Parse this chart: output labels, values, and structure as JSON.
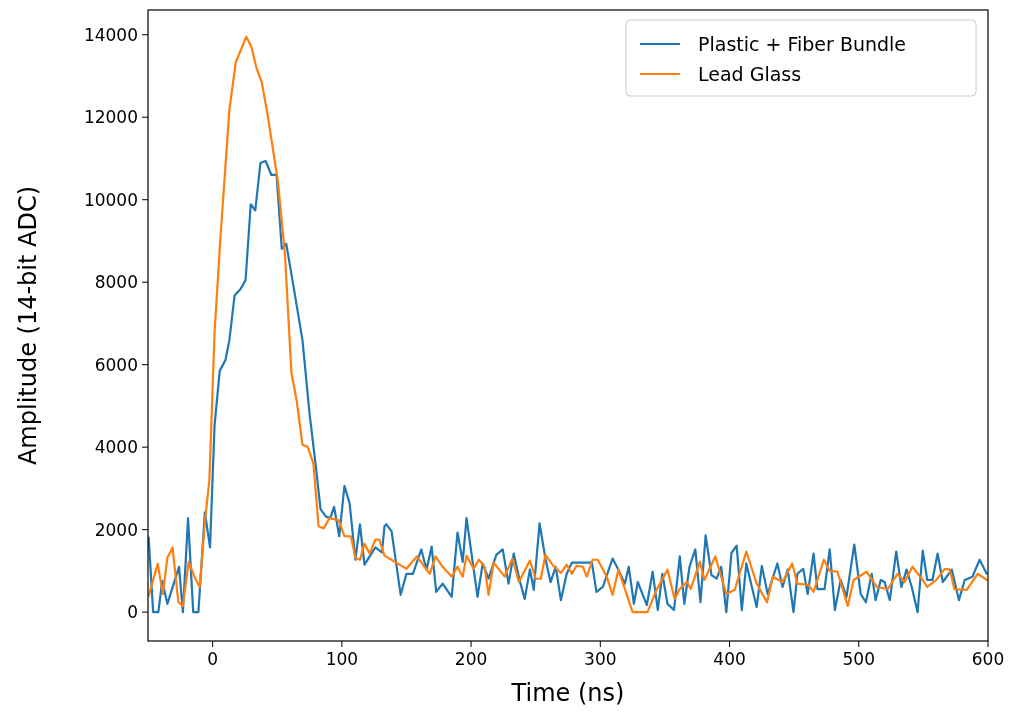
{
  "chart_data": {
    "type": "line",
    "xlabel": "Time (ns)",
    "ylabel": "Amplitude (14-bit ADC)",
    "xlim": [
      -50,
      600
    ],
    "ylim": [
      -700,
      14600
    ],
    "xticks": [
      0,
      100,
      200,
      300,
      400,
      500,
      600
    ],
    "yticks": [
      0,
      2000,
      4000,
      6000,
      8000,
      10000,
      12000,
      14000
    ],
    "grid": false,
    "legend": "top right",
    "marker": "none",
    "line_style": "solid",
    "series": [
      {
        "name": "Plastic + Fiber Bundle",
        "color": "#1f77b4",
        "x": [
          -49.5,
          -46,
          -42,
          -39,
          -35,
          -31,
          -26,
          -23,
          -19,
          -15,
          -11,
          -6,
          -2,
          1.5,
          5.5,
          10,
          13,
          17,
          21.5,
          25.5,
          29.5,
          33,
          37,
          41,
          45.5,
          49.5,
          53.5,
          57,
          63.5,
          69.5,
          75,
          80,
          83.5,
          87.5,
          91,
          94,
          98,
          102,
          106,
          110.5,
          114,
          117.5,
          126,
          131,
          133,
          134.5,
          138.5,
          145.5,
          150,
          155,
          161.5,
          165.5,
          169.5,
          173,
          178,
          185,
          189.5,
          193.5,
          196.5,
          205,
          209,
          213.5,
          219.5,
          224.5,
          229,
          233,
          237.5,
          241.5,
          245.5,
          248.5,
          253,
          257.5,
          261.5,
          265.5,
          269.5,
          274,
          278,
          288,
          293.5,
          297,
          302,
          309.5,
          314,
          319,
          322,
          326,
          329,
          336,
          340.5,
          344.5,
          348,
          352,
          357,
          361.5,
          365,
          369,
          373.5,
          377.5,
          381.5,
          386,
          390,
          393.5,
          397.5,
          401.5,
          405.5,
          409.5,
          413,
          421,
          425,
          429.5,
          437,
          441,
          445,
          449.5,
          452.5,
          457,
          460.5,
          465,
          468,
          473.5,
          477.5,
          481.5,
          486,
          490.5,
          496.5,
          501.5,
          505.5,
          510,
          513,
          517,
          520,
          524,
          529,
          533,
          537,
          541,
          545.5,
          549.5,
          553,
          557,
          561,
          565,
          572,
          577.5,
          582,
          588,
          593.5,
          599
        ],
        "values": [
          1810,
          0,
          0,
          760,
          200,
          600,
          1100,
          0,
          2280,
          0,
          0,
          2420,
          1570,
          4530,
          5850,
          6120,
          6600,
          7680,
          7830,
          8050,
          9890,
          9740,
          10890,
          10940,
          10600,
          10600,
          8810,
          8930,
          7730,
          6600,
          4820,
          3500,
          2500,
          2320,
          2280,
          2550,
          1840,
          3060,
          2640,
          1270,
          2130,
          1150,
          1570,
          1450,
          2080,
          2130,
          1960,
          420,
          930,
          930,
          1520,
          1030,
          1590,
          490,
          690,
          370,
          1930,
          1220,
          2280,
          370,
          1180,
          810,
          1390,
          1520,
          690,
          1420,
          780,
          320,
          1030,
          540,
          2150,
          1300,
          730,
          1100,
          290,
          930,
          1200,
          1200,
          1200,
          490,
          610,
          1300,
          1030,
          690,
          1100,
          200,
          730,
          170,
          980,
          50,
          930,
          200,
          50,
          1350,
          200,
          1100,
          1520,
          240,
          1860,
          900,
          810,
          1100,
          0,
          1440,
          1610,
          50,
          1180,
          120,
          1120,
          440,
          1180,
          610,
          1030,
          0,
          930,
          1050,
          440,
          1420,
          560,
          560,
          1520,
          50,
          780,
          370,
          1640,
          440,
          240,
          930,
          290,
          780,
          730,
          290,
          1470,
          610,
          1030,
          610,
          0,
          1490,
          780,
          780,
          1420,
          730,
          1030,
          290,
          780,
          860,
          1270,
          930
        ]
      },
      {
        "name": "Lead Glass",
        "color": "#ff7f0e",
        "x": [
          -49.5,
          -42.5,
          -38.5,
          -35,
          -31,
          -26.5,
          -23,
          -18.5,
          -14,
          -10,
          -6,
          -2.5,
          1.5,
          6,
          13,
          18,
          26,
          30,
          34,
          38,
          42.5,
          50.5,
          56,
          61,
          65,
          69.5,
          73.5,
          78,
          82,
          86,
          90.5,
          97.5,
          102,
          107,
          110.5,
          114,
          117.5,
          121.5,
          126,
          129,
          133,
          141,
          150,
          158,
          168,
          172.5,
          178,
          185,
          189.5,
          193.5,
          196.5,
          202,
          206,
          210.5,
          213.5,
          217.5,
          226,
          232,
          237,
          245.5,
          250,
          254,
          257.5,
          263,
          269.5,
          274,
          278,
          281.5,
          286.5,
          289.5,
          294,
          298,
          305,
          309.5,
          314,
          325,
          336.5,
          343.5,
          352,
          357.5,
          361.5,
          367,
          370,
          377,
          380.5,
          389,
          397.5,
          404,
          413,
          421,
          429,
          433.5,
          441,
          448.5,
          452.5,
          461,
          465,
          473,
          477.5,
          483.5,
          491.5,
          496,
          506,
          514,
          522.5,
          530,
          535.5,
          541.5,
          549.5,
          553,
          560,
          566.5,
          570.5,
          574,
          583.5,
          592,
          599
        ],
        "values": [
          390,
          1170,
          440,
          1320,
          1570,
          240,
          150,
          1220,
          860,
          610,
          2180,
          3210,
          6780,
          9060,
          12190,
          13340,
          13950,
          13710,
          13190,
          12850,
          12070,
          10450,
          8660,
          5800,
          5140,
          4060,
          4010,
          3600,
          2080,
          2030,
          2280,
          2230,
          1840,
          1840,
          1320,
          1270,
          1660,
          1420,
          1760,
          1760,
          1370,
          1220,
          1050,
          1350,
          930,
          1350,
          1100,
          860,
          1100,
          860,
          1370,
          1050,
          1270,
          1100,
          420,
          1200,
          860,
          1300,
          730,
          1250,
          810,
          810,
          1390,
          1150,
          950,
          1150,
          930,
          1120,
          1100,
          860,
          1270,
          1270,
          860,
          420,
          1030,
          0,
          0,
          540,
          1030,
          320,
          560,
          730,
          560,
          1220,
          780,
          1350,
          440,
          540,
          1470,
          690,
          240,
          860,
          730,
          1180,
          690,
          660,
          490,
          1270,
          1000,
          980,
          150,
          780,
          980,
          610,
          560,
          930,
          730,
          1100,
          780,
          610,
          780,
          1050,
          1030,
          560,
          540,
          930,
          780
        ]
      }
    ]
  }
}
